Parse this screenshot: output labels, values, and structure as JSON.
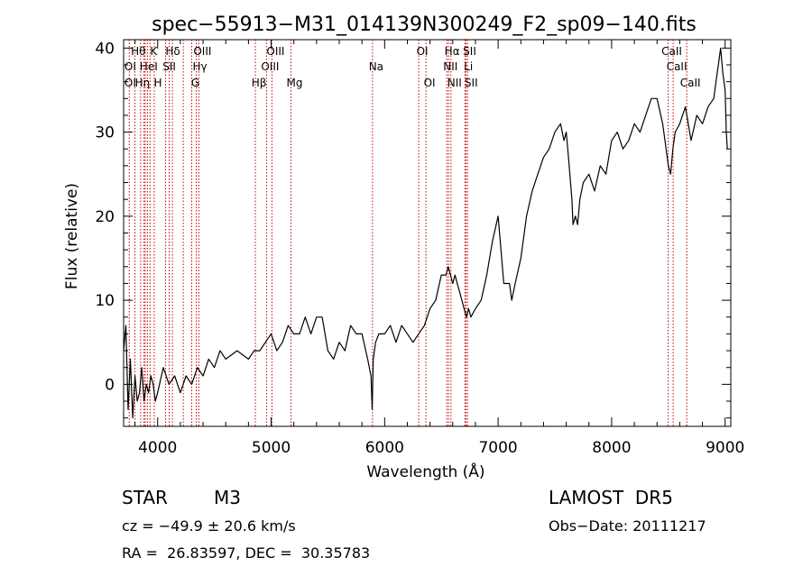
{
  "chart_data": {
    "type": "line",
    "title": "spec−55913−M31_014139N300249_F2_sp09−140.fits",
    "xlabel": "Wavelength (Å)",
    "ylabel": "Flux (relative)",
    "xlim": [
      3700,
      9050
    ],
    "ylim": [
      -5,
      41
    ],
    "xticks": [
      4000,
      5000,
      6000,
      7000,
      8000,
      9000
    ],
    "yticks": [
      0,
      10,
      20,
      30,
      40
    ],
    "grid": false,
    "line_color": "#000000",
    "marker_color": "#cc0000",
    "spectrum": {
      "x": [
        3700,
        3720,
        3740,
        3760,
        3780,
        3800,
        3820,
        3840,
        3860,
        3880,
        3900,
        3920,
        3940,
        3960,
        3980,
        4000,
        4050,
        4100,
        4150,
        4200,
        4250,
        4300,
        4350,
        4400,
        4450,
        4500,
        4550,
        4600,
        4700,
        4800,
        4850,
        4900,
        4950,
        5000,
        5050,
        5100,
        5150,
        5200,
        5250,
        5300,
        5350,
        5400,
        5450,
        5500,
        5550,
        5600,
        5650,
        5700,
        5750,
        5800,
        5850,
        5880,
        5890,
        5900,
        5920,
        5950,
        6000,
        6050,
        6100,
        6150,
        6200,
        6250,
        6300,
        6350,
        6400,
        6450,
        6500,
        6540,
        6560,
        6580,
        6600,
        6620,
        6640,
        6660,
        6680,
        6700,
        6720,
        6740,
        6760,
        6800,
        6850,
        6900,
        6950,
        7000,
        7050,
        7100,
        7120,
        7150,
        7200,
        7250,
        7300,
        7350,
        7400,
        7450,
        7500,
        7550,
        7580,
        7600,
        7620,
        7650,
        7660,
        7680,
        7700,
        7720,
        7750,
        7800,
        7850,
        7900,
        7950,
        8000,
        8050,
        8100,
        8150,
        8200,
        8250,
        8300,
        8350,
        8400,
        8450,
        8480,
        8500,
        8520,
        8540,
        8560,
        8600,
        8650,
        8700,
        8750,
        8800,
        8850,
        8900,
        8920,
        8940,
        8960,
        8980,
        9000,
        9010,
        9020
      ],
      "y": [
        4,
        7,
        -3,
        3,
        -4,
        1,
        -2,
        -1,
        2,
        -2,
        0,
        -1,
        1,
        0,
        -2,
        -1,
        2,
        0,
        1,
        -1,
        1,
        0,
        2,
        1,
        3,
        2,
        4,
        3,
        4,
        3,
        4,
        4,
        5,
        6,
        4,
        5,
        7,
        6,
        6,
        8,
        6,
        8,
        8,
        4,
        3,
        5,
        4,
        7,
        6,
        6,
        3,
        1,
        -3,
        3,
        5,
        6,
        6,
        7,
        5,
        7,
        6,
        5,
        6,
        7,
        9,
        10,
        13,
        13,
        14,
        13,
        12,
        13,
        12,
        11,
        10,
        9,
        8,
        9,
        8,
        9,
        10,
        13,
        17,
        20,
        12,
        12,
        10,
        12,
        15,
        20,
        23,
        25,
        27,
        28,
        30,
        31,
        29,
        30,
        27,
        22,
        19,
        20,
        19,
        22,
        24,
        25,
        23,
        26,
        25,
        29,
        30,
        28,
        29,
        31,
        30,
        32,
        34,
        34,
        31,
        28,
        26,
        25,
        28,
        30,
        31,
        33,
        29,
        32,
        31,
        33,
        34,
        36,
        38,
        40,
        37,
        35,
        30,
        28
      ]
    },
    "markers": {
      "x": [
        3750,
        3800,
        3850,
        3880,
        3890,
        3910,
        3933,
        3970,
        4070,
        4102,
        4130,
        4226,
        4300,
        4340,
        4363,
        4861,
        4959,
        5007,
        5175,
        5893,
        6300,
        6364,
        6548,
        6563,
        6584,
        6707,
        6717,
        6731,
        8498,
        8542,
        8662
      ],
      "row1": [
        {
          "label": "Hθ",
          "wl": 3798
        },
        {
          "label": "K",
          "wl": 3933
        },
        {
          "label": "Hδ",
          "wl": 4102
        },
        {
          "label": "OIII",
          "wl": 4363
        },
        {
          "label": "OIII",
          "wl": 5007
        },
        {
          "label": "OI",
          "wl": 6300
        },
        {
          "label": "Hα",
          "wl": 6563
        },
        {
          "label": "SII",
          "wl": 6717
        },
        {
          "label": "CaII",
          "wl": 8498
        }
      ],
      "row2": [
        {
          "label": "OI",
          "wl": 3727
        },
        {
          "label": "HeI",
          "wl": 3889
        },
        {
          "label": "SII",
          "wl": 4070
        },
        {
          "label": "Hγ",
          "wl": 4340
        },
        {
          "label": "OIII",
          "wl": 4959
        },
        {
          "label": "Na",
          "wl": 5893
        },
        {
          "label": "NII",
          "wl": 6548
        },
        {
          "label": "Li",
          "wl": 6707
        },
        {
          "label": "CaII",
          "wl": 8542
        }
      ],
      "row3": [
        {
          "label": "OI",
          "wl": 3727
        },
        {
          "label": "Hη",
          "wl": 3835
        },
        {
          "label": "H",
          "wl": 3970
        },
        {
          "label": "G",
          "wl": 4300
        },
        {
          "label": "Hβ",
          "wl": 4861
        },
        {
          "label": "Mg",
          "wl": 5175
        },
        {
          "label": "OI",
          "wl": 6364
        },
        {
          "label": "NII",
          "wl": 6584
        },
        {
          "label": "SII",
          "wl": 6731
        },
        {
          "label": "CaII",
          "wl": 8662
        }
      ]
    }
  },
  "info": {
    "object_class": "STAR",
    "subclass": "M3",
    "survey": "LAMOST  DR5",
    "cz": "cz = −49.9 ± 20.6 km/s",
    "obs_date": "Obs−Date: 20111217",
    "coords": "RA =  26.83597, DEC =  30.35783"
  }
}
